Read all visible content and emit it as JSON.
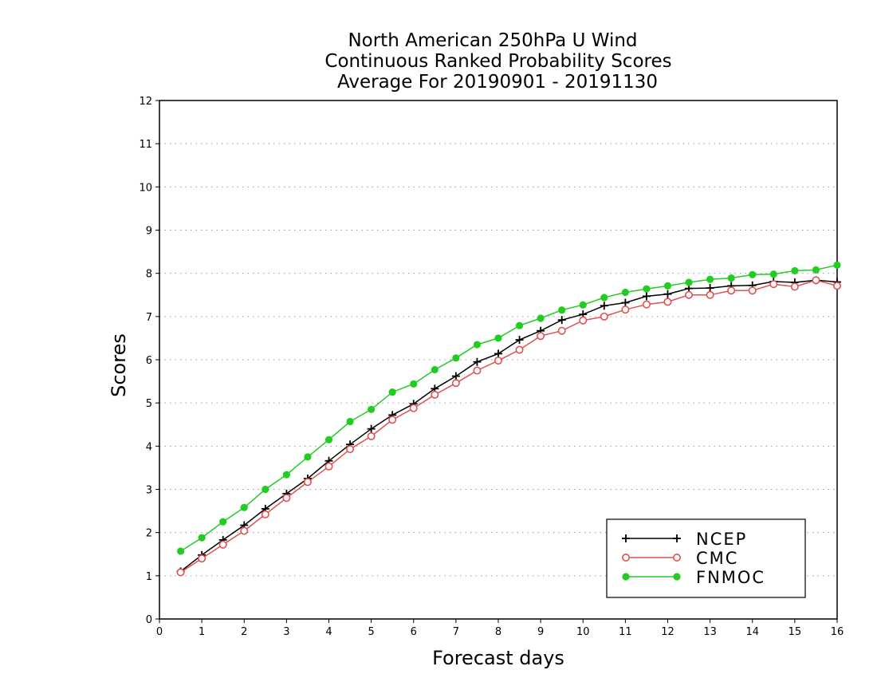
{
  "chart_data": {
    "type": "line",
    "title_lines": [
      "North American 250hPa U Wind",
      "Continuous Ranked Probability Scores",
      "Average For 20190901 - 20191130"
    ],
    "xlabel": "Forecast days",
    "ylabel": "Scores",
    "xlim": [
      0,
      16
    ],
    "ylim": [
      0,
      12
    ],
    "x_ticks": [
      0,
      1,
      2,
      3,
      4,
      5,
      6,
      7,
      8,
      9,
      10,
      11,
      12,
      13,
      14,
      15,
      16
    ],
    "y_ticks": [
      0,
      1,
      2,
      3,
      4,
      5,
      6,
      7,
      8,
      9,
      10,
      11,
      12
    ],
    "grid": true,
    "legend_position": "bottom-right",
    "x": [
      0.5,
      1,
      1.5,
      2,
      2.5,
      3,
      3.5,
      4,
      4.5,
      5,
      5.5,
      6,
      6.5,
      7,
      7.5,
      8,
      8.5,
      9,
      9.5,
      10,
      10.5,
      11,
      11.5,
      12,
      12.5,
      13,
      13.5,
      14,
      14.5,
      15,
      15.5,
      16
    ],
    "series": [
      {
        "name": "NCEP",
        "color": "#000000",
        "marker": "plus",
        "values": [
          1.1,
          1.48,
          1.83,
          2.17,
          2.55,
          2.9,
          3.25,
          3.66,
          4.04,
          4.4,
          4.72,
          4.98,
          5.33,
          5.62,
          5.95,
          6.14,
          6.46,
          6.67,
          6.92,
          7.05,
          7.25,
          7.32,
          7.47,
          7.52,
          7.65,
          7.66,
          7.71,
          7.72,
          7.81,
          7.79,
          7.84,
          7.8
        ]
      },
      {
        "name": "CMC",
        "color": "#e05050",
        "marker": "open-circle",
        "values": [
          1.08,
          1.4,
          1.72,
          2.04,
          2.42,
          2.8,
          3.17,
          3.53,
          3.93,
          4.23,
          4.61,
          4.88,
          5.19,
          5.46,
          5.75,
          5.98,
          6.23,
          6.55,
          6.67,
          6.91,
          7.0,
          7.16,
          7.28,
          7.34,
          7.5,
          7.5,
          7.6,
          7.6,
          7.75,
          7.69,
          7.84,
          7.71
        ]
      },
      {
        "name": "FNMOC",
        "color": "#22cc22",
        "marker": "filled-circle",
        "values": [
          1.57,
          1.88,
          2.25,
          2.58,
          3.0,
          3.34,
          3.75,
          4.15,
          4.57,
          4.85,
          5.25,
          5.44,
          5.77,
          6.04,
          6.35,
          6.5,
          6.79,
          6.96,
          7.15,
          7.27,
          7.44,
          7.56,
          7.64,
          7.71,
          7.79,
          7.86,
          7.89,
          7.97,
          7.98,
          8.06,
          8.08,
          8.19
        ]
      }
    ]
  }
}
